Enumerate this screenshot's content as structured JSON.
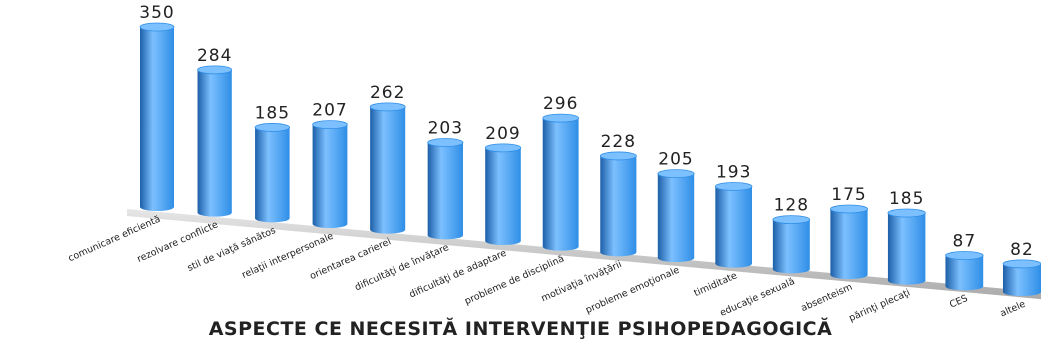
{
  "chart_data": {
    "type": "bar",
    "title": "",
    "xlabel": "ASPECTE CE NECESITĂ INTERVENŢIE PSIHOPEDAGOGICĂ",
    "ylabel": "",
    "categories": [
      "comunicare eficientă",
      "rezolvare conflicte",
      "stil de viaţă sănătos",
      "relaţii interpersonale",
      "orientarea carierei",
      "dificultăţi de învăţare",
      "dificultăţi de adaptare",
      "probleme de disciplină",
      "motivaţia învăţării",
      "probleme emoţionale",
      "timiditate",
      "educaţie sexuală",
      "absenteism",
      "părinţi plecaţi",
      "CES",
      "altele"
    ],
    "values": [
      350,
      284,
      185,
      207,
      262,
      203,
      209,
      296,
      228,
      205,
      193,
      128,
      175,
      185,
      87,
      82
    ],
    "ylim": [
      0,
      350
    ],
    "colors": {
      "bar": "#2f8ee6",
      "bar_light": "#7cc0ff",
      "bar_dark": "#1c5fa8",
      "floor": "#c9c9c9"
    },
    "grid": false,
    "legend": "none"
  }
}
